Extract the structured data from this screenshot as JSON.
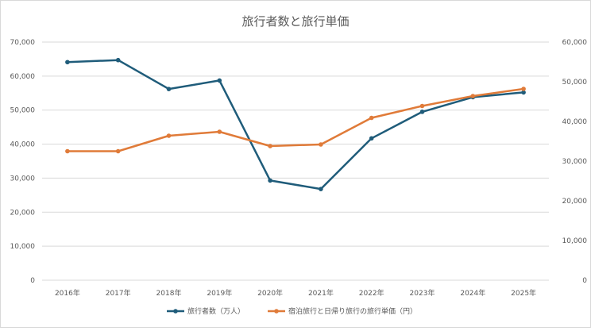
{
  "chart_data": {
    "type": "line",
    "title": "旅行者数と旅行単価",
    "categories": [
      "2016年",
      "2017年",
      "2018年",
      "2019年",
      "2020年",
      "2021年",
      "2022年",
      "2023年",
      "2024年",
      "2025年"
    ],
    "series": [
      {
        "name": "旅行者数（万人）",
        "axis": "left",
        "color": "#1f5c7a",
        "values": [
          64100,
          64700,
          56200,
          58700,
          29300,
          26800,
          41700,
          49500,
          53800,
          55200
        ]
      },
      {
        "name": "宿泊旅行と日帰り旅行の旅行単価（円）",
        "axis": "right",
        "color": "#e07b39",
        "values": [
          32500,
          32500,
          36400,
          37400,
          33800,
          34200,
          40900,
          43900,
          46400,
          48200
        ]
      }
    ],
    "y_left": {
      "range": [
        0,
        70000
      ],
      "ticks": [
        "0",
        "10,000",
        "20,000",
        "30,000",
        "40,000",
        "50,000",
        "60,000",
        "70,000"
      ]
    },
    "y_right": {
      "range": [
        0,
        60000
      ],
      "ticks": [
        "0",
        "10,000",
        "20,000",
        "30,000",
        "40,000",
        "50,000",
        "60,000"
      ]
    },
    "grid": "horizontal",
    "legend_position": "bottom"
  }
}
